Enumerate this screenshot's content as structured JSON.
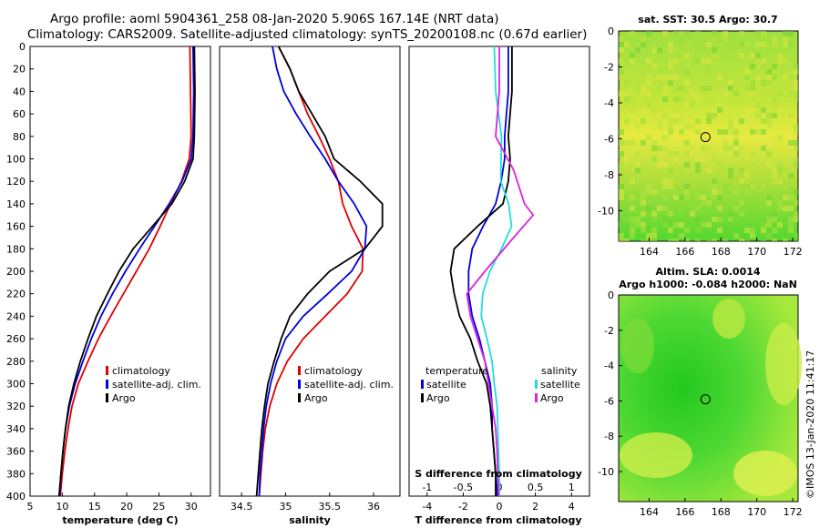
{
  "header": {
    "title_line1": "Argo profile: aoml 5904361_258 08-Jan-2020 5.906S 167.14E (NRT data)",
    "title_line2": "Climatology: CARS2009. Satellite-adjusted climatology: synTS_20200108.nc (0.67d earlier)"
  },
  "credit": "©IMOS 13-Jan-2020 11:41:17",
  "colors": {
    "climatology": "#e00000",
    "satellite": "#0000e0",
    "argo": "#000000",
    "sat_salinity": "#22dddd",
    "argo_salinity": "#dd22dd"
  },
  "chart_data": [
    {
      "id": "temperature",
      "type": "line",
      "xlabel": "temperature (deg C)",
      "xlim": [
        5,
        33
      ],
      "ylim": [
        400,
        0
      ],
      "xticks": [
        "5",
        "10",
        "15",
        "20",
        "25",
        "30"
      ],
      "yticks": [
        "0",
        "20",
        "40",
        "60",
        "80",
        "100",
        "120",
        "140",
        "160",
        "180",
        "200",
        "220",
        "240",
        "260",
        "280",
        "300",
        "320",
        "340",
        "360",
        "380",
        "400"
      ],
      "legend": [
        "climatology",
        "satellite-adj. clim.",
        "Argo"
      ],
      "series": [
        {
          "name": "climatology",
          "color": "#e00000",
          "points": [
            [
              29.8,
              0
            ],
            [
              29.9,
              40
            ],
            [
              30.0,
              80
            ],
            [
              29.7,
              100
            ],
            [
              28.5,
              120
            ],
            [
              26.8,
              140
            ],
            [
              25.2,
              160
            ],
            [
              23.5,
              180
            ],
            [
              21.5,
              200
            ],
            [
              19.5,
              220
            ],
            [
              17.5,
              240
            ],
            [
              15.6,
              260
            ],
            [
              14.0,
              280
            ],
            [
              12.5,
              300
            ],
            [
              11.5,
              320
            ],
            [
              10.9,
              340
            ],
            [
              10.4,
              360
            ],
            [
              10.0,
              380
            ],
            [
              9.7,
              400
            ]
          ]
        },
        {
          "name": "satellite-adj. clim.",
          "color": "#0000e0",
          "points": [
            [
              30.3,
              0
            ],
            [
              30.4,
              40
            ],
            [
              30.3,
              80
            ],
            [
              30.0,
              100
            ],
            [
              28.6,
              120
            ],
            [
              26.6,
              140
            ],
            [
              24.3,
              160
            ],
            [
              22.0,
              180
            ],
            [
              19.8,
              200
            ],
            [
              17.8,
              220
            ],
            [
              16.0,
              240
            ],
            [
              14.5,
              260
            ],
            [
              13.2,
              280
            ],
            [
              12.0,
              300
            ],
            [
              11.1,
              320
            ],
            [
              10.5,
              340
            ],
            [
              10.1,
              360
            ],
            [
              9.8,
              380
            ],
            [
              9.6,
              400
            ]
          ]
        },
        {
          "name": "Argo",
          "color": "#000000",
          "points": [
            [
              30.5,
              0
            ],
            [
              30.6,
              40
            ],
            [
              30.5,
              80
            ],
            [
              30.3,
              100
            ],
            [
              29.0,
              120
            ],
            [
              27.0,
              140
            ],
            [
              24.0,
              160
            ],
            [
              21.0,
              180
            ],
            [
              18.8,
              200
            ],
            [
              17.0,
              220
            ],
            [
              15.3,
              240
            ],
            [
              14.0,
              260
            ],
            [
              12.8,
              280
            ],
            [
              11.8,
              300
            ],
            [
              11.0,
              320
            ],
            [
              10.5,
              340
            ],
            [
              10.1,
              360
            ],
            [
              9.8,
              380
            ],
            [
              9.5,
              400
            ]
          ]
        }
      ]
    },
    {
      "id": "salinity",
      "type": "line",
      "xlabel": "salinity",
      "xlim": [
        34.25,
        36.3
      ],
      "ylim": [
        400,
        0
      ],
      "xticks": [
        "34.5",
        "35",
        "35.5",
        "36"
      ],
      "legend": [
        "climatology",
        "satellite-adj. clim.",
        "Argo"
      ],
      "series": [
        {
          "name": "climatology",
          "color": "#e00000",
          "points": [
            [
              34.92,
              0
            ],
            [
              35.05,
              20
            ],
            [
              35.15,
              40
            ],
            [
              35.25,
              60
            ],
            [
              35.38,
              80
            ],
            [
              35.5,
              100
            ],
            [
              35.6,
              120
            ],
            [
              35.65,
              140
            ],
            [
              35.75,
              160
            ],
            [
              35.88,
              180
            ],
            [
              35.87,
              200
            ],
            [
              35.7,
              220
            ],
            [
              35.45,
              240
            ],
            [
              35.2,
              260
            ],
            [
              35.02,
              280
            ],
            [
              34.9,
              300
            ],
            [
              34.82,
              320
            ],
            [
              34.77,
              340
            ],
            [
              34.74,
              360
            ],
            [
              34.72,
              380
            ],
            [
              34.7,
              400
            ]
          ]
        },
        {
          "name": "satellite-adj. clim.",
          "color": "#0000e0",
          "points": [
            [
              34.85,
              0
            ],
            [
              34.9,
              20
            ],
            [
              34.98,
              40
            ],
            [
              35.12,
              60
            ],
            [
              35.28,
              80
            ],
            [
              35.45,
              100
            ],
            [
              35.6,
              120
            ],
            [
              35.78,
              140
            ],
            [
              35.92,
              160
            ],
            [
              35.9,
              180
            ],
            [
              35.75,
              200
            ],
            [
              35.48,
              220
            ],
            [
              35.2,
              240
            ],
            [
              35.0,
              260
            ],
            [
              34.9,
              280
            ],
            [
              34.83,
              300
            ],
            [
              34.78,
              320
            ],
            [
              34.75,
              340
            ],
            [
              34.73,
              360
            ],
            [
              34.71,
              380
            ],
            [
              34.7,
              400
            ]
          ]
        },
        {
          "name": "Argo",
          "color": "#000000",
          "points": [
            [
              34.92,
              0
            ],
            [
              35.05,
              20
            ],
            [
              35.15,
              40
            ],
            [
              35.3,
              60
            ],
            [
              35.45,
              80
            ],
            [
              35.55,
              100
            ],
            [
              35.85,
              120
            ],
            [
              36.1,
              140
            ],
            [
              36.1,
              160
            ],
            [
              35.9,
              180
            ],
            [
              35.5,
              200
            ],
            [
              35.25,
              220
            ],
            [
              35.05,
              240
            ],
            [
              34.95,
              260
            ],
            [
              34.87,
              280
            ],
            [
              34.8,
              300
            ],
            [
              34.76,
              320
            ],
            [
              34.73,
              340
            ],
            [
              34.71,
              360
            ],
            [
              34.69,
              380
            ],
            [
              34.67,
              400
            ]
          ]
        }
      ]
    },
    {
      "id": "difference",
      "type": "line",
      "xlabel": "T difference from climatology",
      "x2label": "S difference from climatology",
      "xlim": [
        -5,
        5
      ],
      "ylim": [
        400,
        0
      ],
      "x2lim": [
        -1.25,
        1.25
      ],
      "xticks": [
        "-4",
        "-2",
        "0",
        "2",
        "4"
      ],
      "x2ticks": [
        "-1",
        "-0.5",
        "0",
        "0.5",
        "1"
      ],
      "legend_left_title": "temperature",
      "legend_right_title": "salinity",
      "legend_left": [
        "satellite",
        "Argo"
      ],
      "legend_right": [
        "satellite",
        "Argo"
      ],
      "series": [
        {
          "name": "T satellite",
          "color": "#0000e0",
          "points": [
            [
              0.5,
              0
            ],
            [
              0.5,
              40
            ],
            [
              0.3,
              80
            ],
            [
              0.3,
              100
            ],
            [
              0.1,
              120
            ],
            [
              -0.2,
              140
            ],
            [
              -0.9,
              160
            ],
            [
              -1.5,
              180
            ],
            [
              -1.7,
              200
            ],
            [
              -1.7,
              220
            ],
            [
              -1.5,
              240
            ],
            [
              -1.1,
              260
            ],
            [
              -0.8,
              280
            ],
            [
              -0.5,
              300
            ],
            [
              -0.4,
              320
            ],
            [
              -0.4,
              340
            ],
            [
              -0.3,
              360
            ],
            [
              -0.2,
              380
            ],
            [
              -0.1,
              400
            ]
          ]
        },
        {
          "name": "T Argo",
          "color": "#000000",
          "points": [
            [
              0.7,
              0
            ],
            [
              0.7,
              40
            ],
            [
              0.5,
              80
            ],
            [
              0.6,
              100
            ],
            [
              0.5,
              120
            ],
            [
              0.2,
              140
            ],
            [
              -1.2,
              160
            ],
            [
              -2.5,
              180
            ],
            [
              -2.7,
              200
            ],
            [
              -2.5,
              220
            ],
            [
              -2.2,
              240
            ],
            [
              -1.6,
              260
            ],
            [
              -1.2,
              280
            ],
            [
              -0.7,
              300
            ],
            [
              -0.5,
              320
            ],
            [
              -0.4,
              340
            ],
            [
              -0.3,
              360
            ],
            [
              -0.2,
              380
            ],
            [
              -0.2,
              400
            ]
          ]
        },
        {
          "name": "S satellite",
          "color": "#22dddd",
          "points": [
            [
              -0.07,
              0
            ],
            [
              -0.05,
              40
            ],
            [
              0.03,
              80
            ],
            [
              0.02,
              120
            ],
            [
              0.13,
              140
            ],
            [
              0.17,
              160
            ],
            [
              0.03,
              180
            ],
            [
              -0.13,
              200
            ],
            [
              -0.23,
              220
            ],
            [
              -0.25,
              240
            ],
            [
              -0.17,
              260
            ],
            [
              -0.1,
              280
            ],
            [
              -0.07,
              300
            ],
            [
              -0.03,
              320
            ],
            [
              -0.02,
              340
            ],
            [
              -0.01,
              360
            ],
            [
              0.0,
              380
            ],
            [
              0.0,
              400
            ]
          ]
        },
        {
          "name": "S Argo",
          "color": "#dd22dd",
          "points": [
            [
              0.0,
              0
            ],
            [
              0.0,
              40
            ],
            [
              -0.05,
              80
            ],
            [
              0.2,
              110
            ],
            [
              0.35,
              140
            ],
            [
              0.47,
              150
            ],
            [
              0.2,
              170
            ],
            [
              -0.2,
              200
            ],
            [
              -0.45,
              220
            ],
            [
              -0.4,
              240
            ],
            [
              -0.3,
              260
            ],
            [
              -0.2,
              280
            ],
            [
              -0.15,
              300
            ],
            [
              -0.1,
              320
            ],
            [
              -0.05,
              340
            ],
            [
              -0.03,
              360
            ],
            [
              -0.02,
              380
            ],
            [
              -0.01,
              400
            ]
          ]
        }
      ]
    }
  ],
  "maps": [
    {
      "id": "sst-map",
      "title_line1": "sat. SST: 30.5 Argo: 30.7",
      "title_line2": "",
      "xticks": [
        "164",
        "166",
        "168",
        "170",
        "172"
      ],
      "yticks": [
        "0",
        "-2",
        "-4",
        "-6",
        "-8",
        "-10"
      ],
      "marker": {
        "lon": 167.14,
        "lat": -5.906
      },
      "xlim": [
        162.3,
        172.3
      ],
      "ylim": [
        0,
        -11.7
      ]
    },
    {
      "id": "sla-map",
      "title_line1": "Altim. SLA: 0.0014",
      "title_line2": "Argo h1000: -0.084 h2000: NaN",
      "xticks": [
        "164",
        "166",
        "168",
        "170",
        "172"
      ],
      "yticks": [
        "0",
        "-2",
        "-4",
        "-6",
        "-8",
        "-10"
      ],
      "marker": {
        "lon": 167.14,
        "lat": -5.906
      },
      "xlim": [
        162.3,
        172.3
      ],
      "ylim": [
        0,
        -11.7
      ]
    }
  ]
}
